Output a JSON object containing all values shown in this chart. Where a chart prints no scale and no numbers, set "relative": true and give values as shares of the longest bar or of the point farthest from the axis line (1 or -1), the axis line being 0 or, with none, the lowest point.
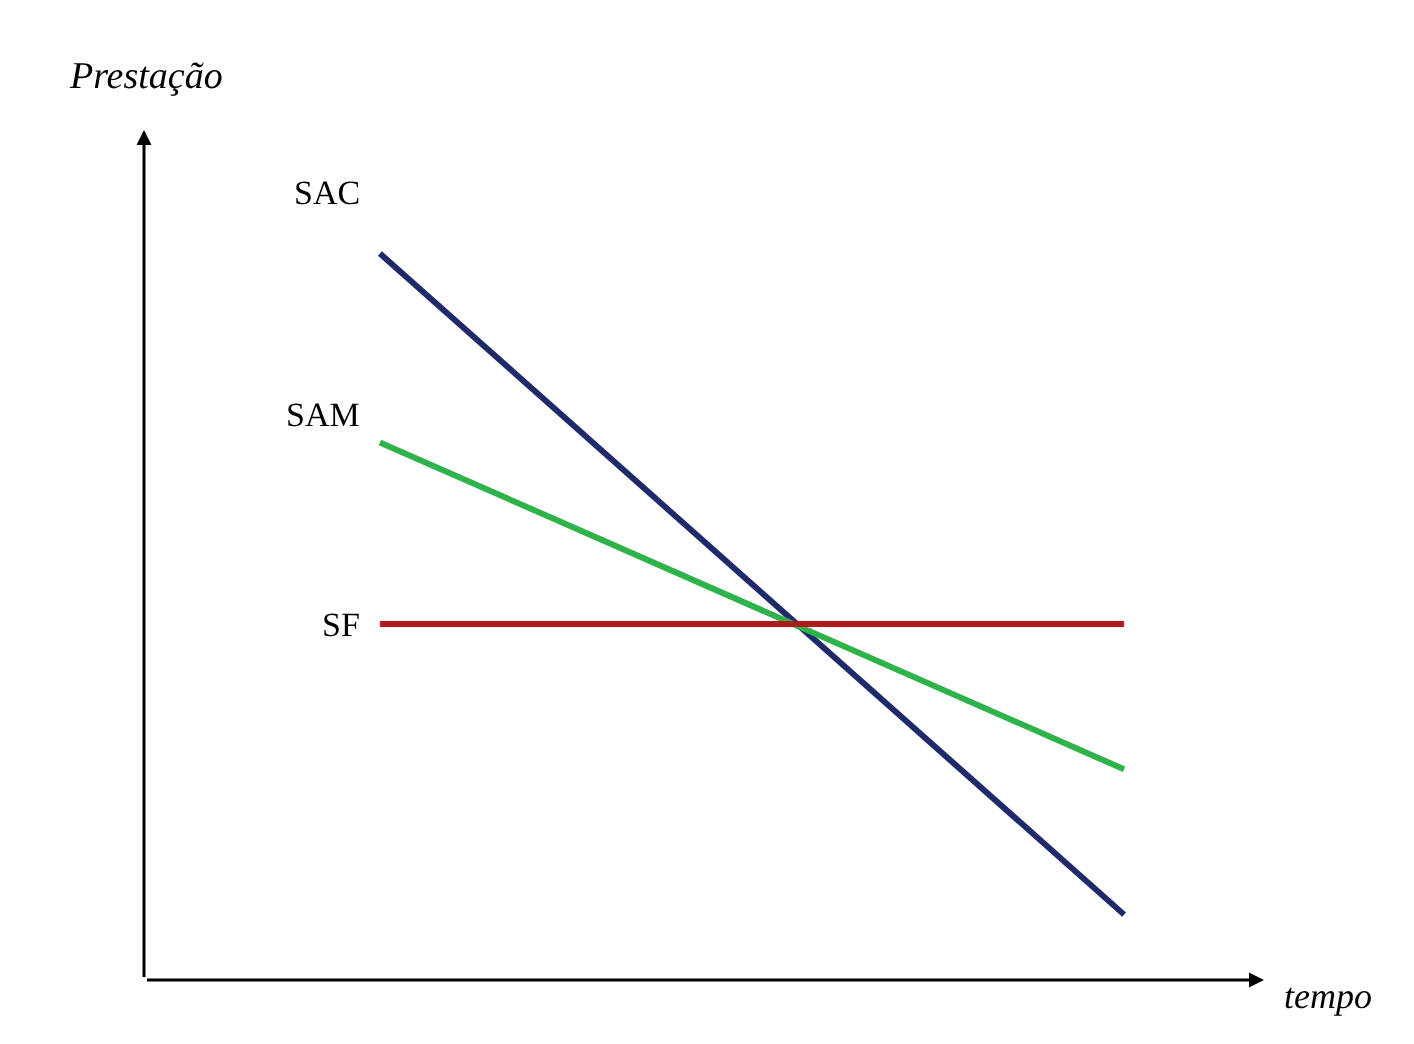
{
  "chart_data": {
    "type": "line",
    "relative": true,
    "xlabel": "tempo",
    "ylabel": "Prestação",
    "categories": [
      null,
      null
    ],
    "legend": false,
    "marker": "none",
    "line_style": "solid",
    "series": [
      {
        "name": "SAC",
        "color": "#1f2a6b",
        "values": [
          1,
          0.09
        ]
      },
      {
        "name": "SAM",
        "color": "#2db34a",
        "values": [
          0.74,
          0.29
        ]
      },
      {
        "name": "SF",
        "color": "#b01c1c",
        "values": [
          0.49,
          0.49
        ]
      }
    ]
  }
}
